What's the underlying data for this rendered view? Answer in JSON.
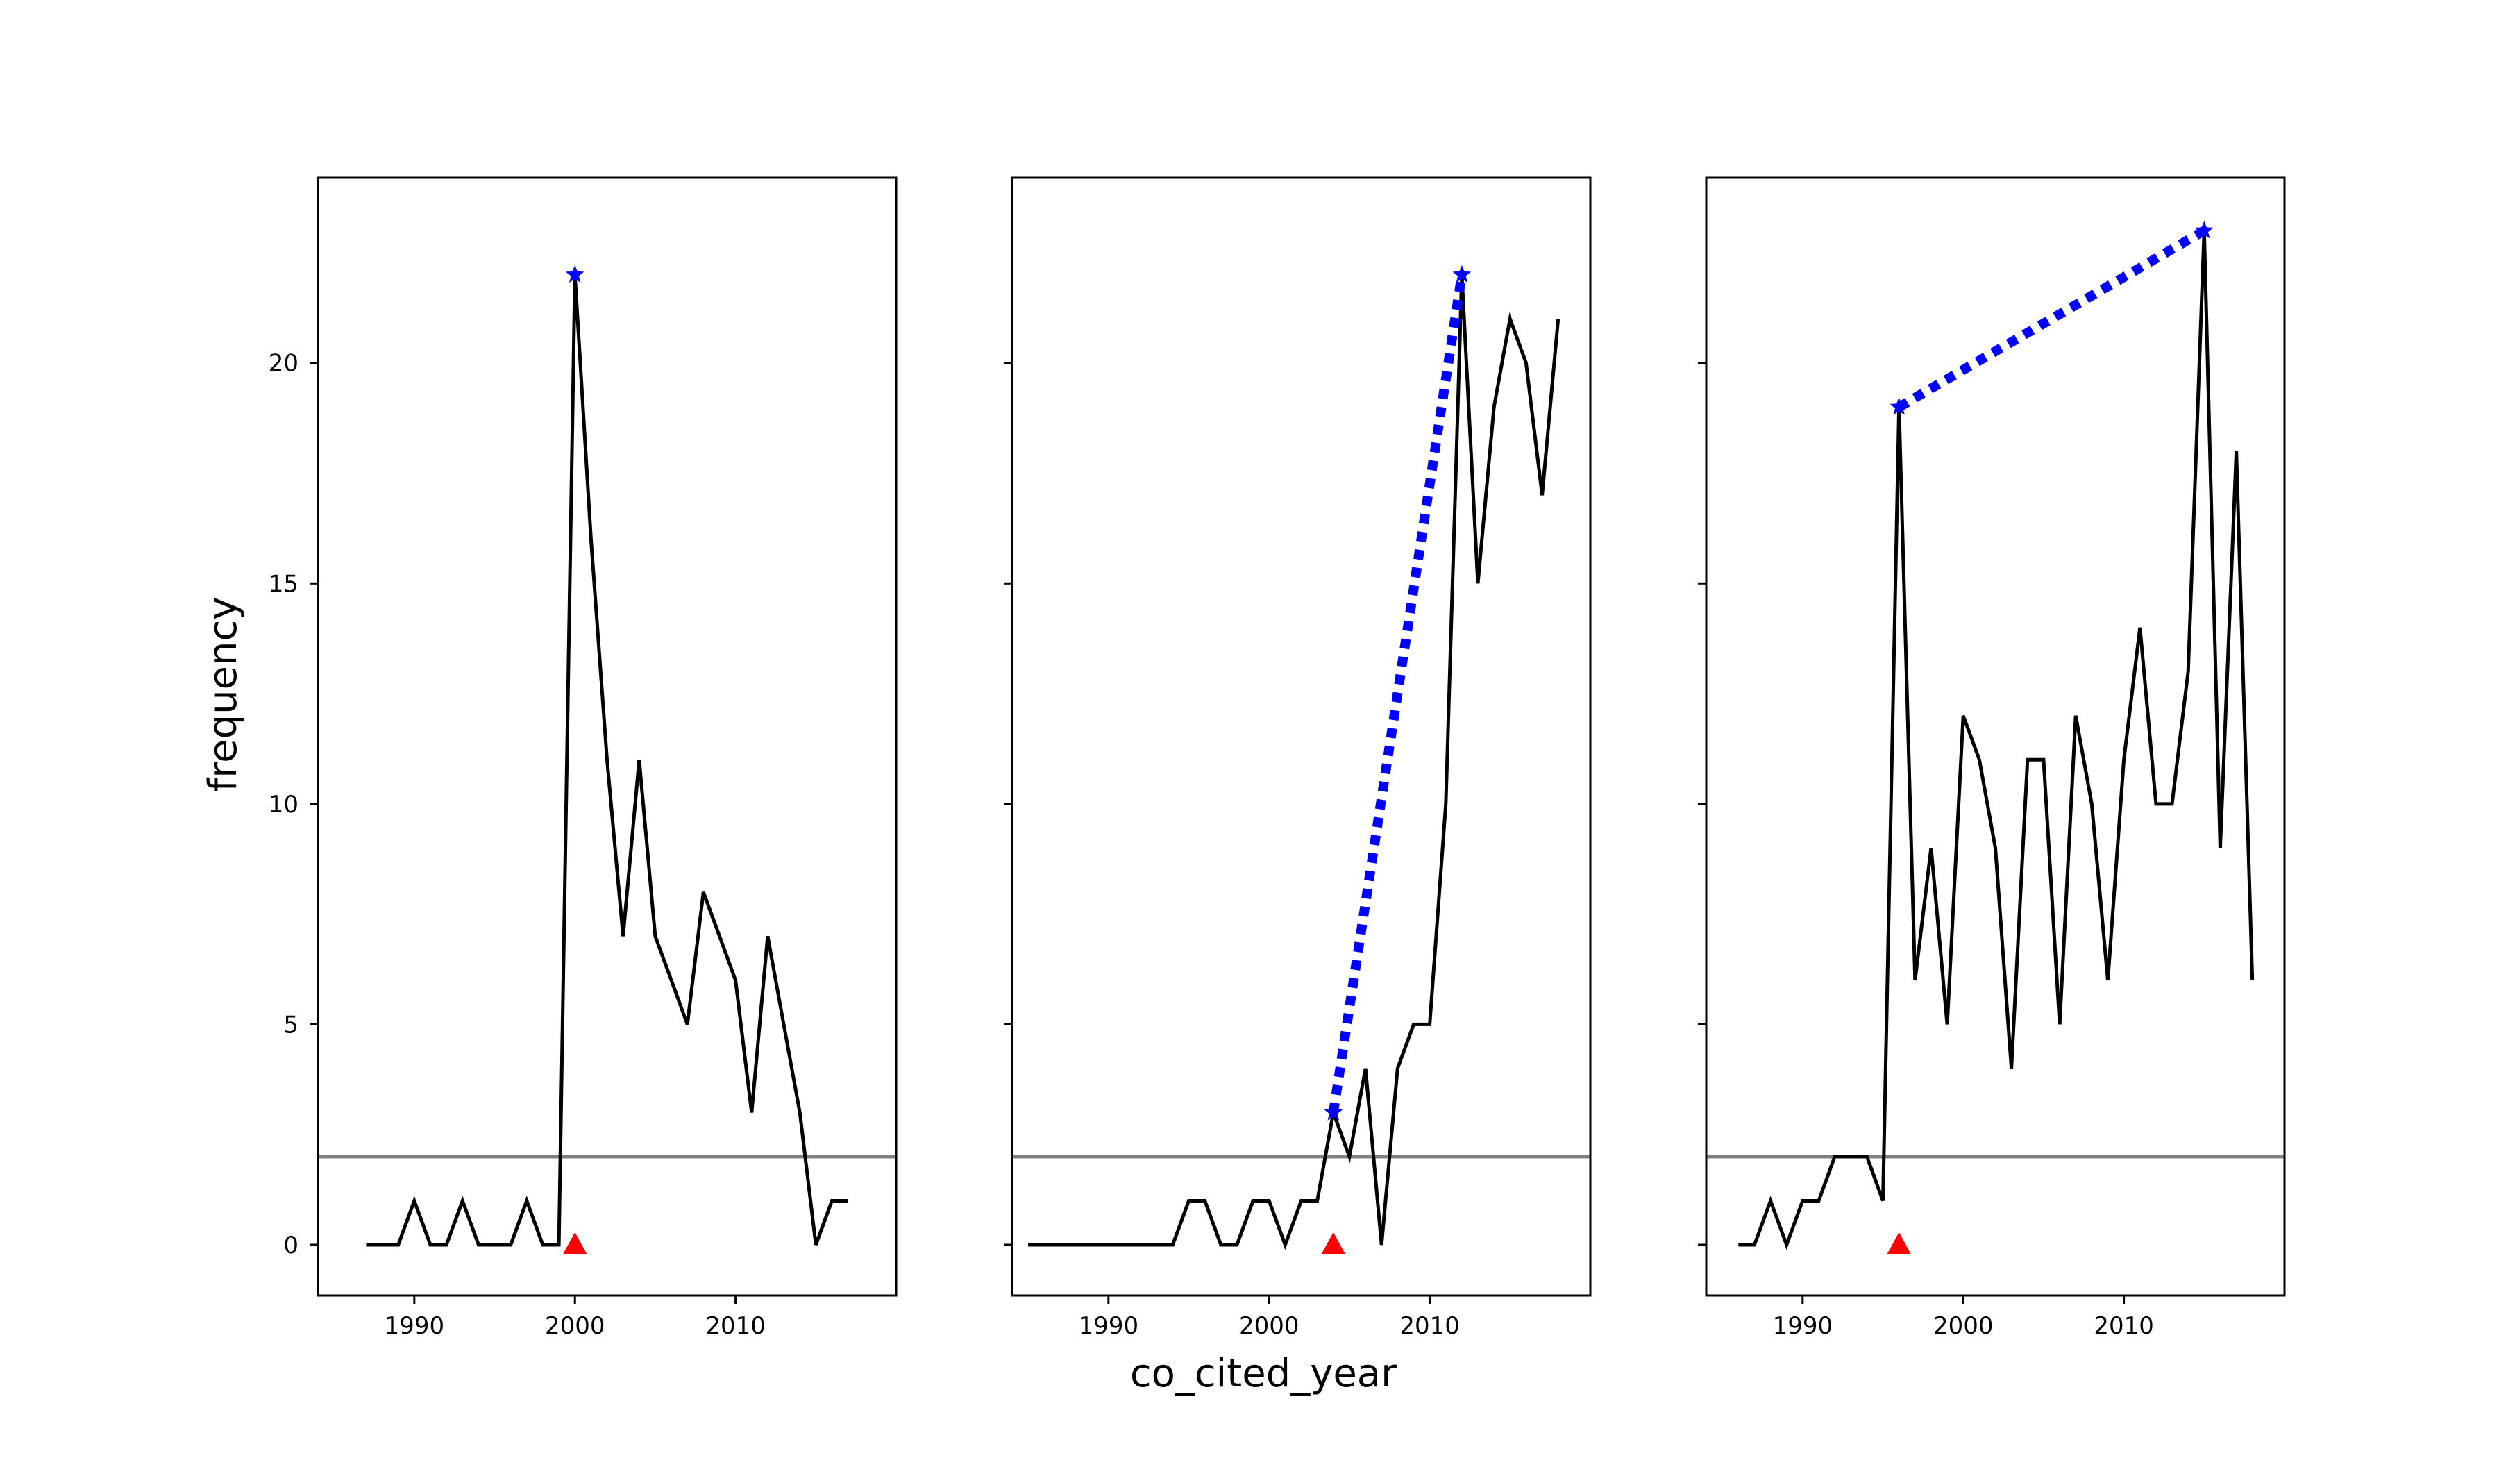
{
  "figure": {
    "xlabel": "co_cited_year",
    "ylabel": "frequency"
  },
  "colors": {
    "series_line": "#000000",
    "threshold_line": "#808080",
    "dotted_link": "#0000ff",
    "star_marker": "#0000ff",
    "triangle_marker": "#ff0000"
  },
  "chart_data": [
    {
      "type": "line",
      "xlim": [
        1984,
        2020
      ],
      "ylim": [
        -1.15,
        24.2
      ],
      "x_ticks": [
        1990,
        2000,
        2010
      ],
      "y_ticks": [
        0,
        5,
        10,
        15,
        20
      ],
      "show_y_tick_labels": true,
      "grid": false,
      "threshold": 2,
      "x": [
        1987,
        1988,
        1989,
        1990,
        1991,
        1992,
        1993,
        1994,
        1995,
        1996,
        1997,
        1998,
        1999,
        2000,
        2001,
        2002,
        2003,
        2004,
        2005,
        2006,
        2007,
        2008,
        2009,
        2010,
        2011,
        2012,
        2013,
        2014,
        2015,
        2016,
        2017
      ],
      "values": [
        0,
        0,
        0,
        1,
        0,
        0,
        1,
        0,
        0,
        0,
        1,
        0,
        0,
        22,
        16,
        11,
        7,
        11,
        7,
        6,
        5,
        8,
        7,
        6,
        3,
        7,
        5,
        3,
        0,
        1,
        1
      ],
      "dotted_segment": {
        "x": [
          2000,
          2000
        ],
        "y": [
          22,
          22
        ]
      },
      "stars": {
        "x": [
          2000
        ],
        "y": [
          22
        ]
      },
      "triangle": {
        "x": 2000,
        "y": 0
      }
    },
    {
      "type": "line",
      "xlim": [
        1984,
        2020
      ],
      "ylim": [
        -1.15,
        24.2
      ],
      "x_ticks": [
        1990,
        2000,
        2010
      ],
      "y_ticks": [
        0,
        5,
        10,
        15,
        20
      ],
      "show_y_tick_labels": false,
      "grid": false,
      "threshold": 2,
      "x": [
        1985,
        1986,
        1987,
        1988,
        1989,
        1990,
        1991,
        1992,
        1993,
        1994,
        1995,
        1996,
        1997,
        1998,
        1999,
        2000,
        2001,
        2002,
        2003,
        2004,
        2005,
        2006,
        2007,
        2008,
        2009,
        2010,
        2011,
        2012,
        2013,
        2014,
        2015,
        2016,
        2017,
        2018
      ],
      "values": [
        0,
        0,
        0,
        0,
        0,
        0,
        0,
        0,
        0,
        0,
        1,
        1,
        0,
        0,
        1,
        1,
        0,
        1,
        1,
        3,
        2,
        4,
        0,
        4,
        5,
        5,
        10,
        22,
        15,
        19,
        21,
        20,
        17,
        21
      ],
      "dotted_segment": {
        "x": [
          2004,
          2012
        ],
        "y": [
          3,
          22
        ]
      },
      "stars": {
        "x": [
          2004,
          2012
        ],
        "y": [
          3,
          22
        ]
      },
      "triangle": {
        "x": 2004,
        "y": 0
      }
    },
    {
      "type": "line",
      "xlim": [
        1984,
        2020
      ],
      "ylim": [
        -1.15,
        24.2
      ],
      "x_ticks": [
        1990,
        2000,
        2010
      ],
      "y_ticks": [
        0,
        5,
        10,
        15,
        20
      ],
      "show_y_tick_labels": false,
      "grid": false,
      "threshold": 2,
      "x": [
        1986,
        1987,
        1988,
        1989,
        1990,
        1991,
        1992,
        1993,
        1994,
        1995,
        1996,
        1997,
        1998,
        1999,
        2000,
        2001,
        2002,
        2003,
        2004,
        2005,
        2006,
        2007,
        2008,
        2009,
        2010,
        2011,
        2012,
        2013,
        2014,
        2015,
        2016,
        2017,
        2018
      ],
      "values": [
        0,
        0,
        1,
        0,
        1,
        1,
        2,
        2,
        2,
        1,
        19,
        6,
        9,
        5,
        12,
        11,
        9,
        4,
        11,
        11,
        5,
        12,
        10,
        6,
        11,
        14,
        10,
        10,
        13,
        23,
        9,
        18,
        6
      ],
      "dotted_segment": {
        "x": [
          1996,
          2015
        ],
        "y": [
          19,
          23
        ]
      },
      "stars": {
        "x": [
          1996,
          2015
        ],
        "y": [
          19,
          23
        ]
      },
      "triangle": {
        "x": 1996,
        "y": 0
      }
    }
  ]
}
